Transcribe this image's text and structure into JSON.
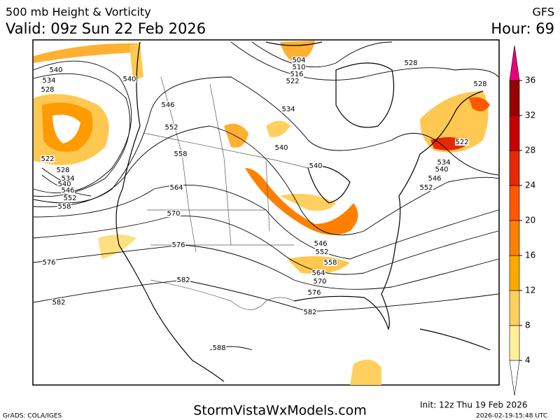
{
  "header": {
    "title": "500 mb Height & Vorticity",
    "valid": "Valid: 09z Sun 22 Feb 2026",
    "model": "GFS",
    "hour": "Hour: 69"
  },
  "colorbar": {
    "ticks": [
      4,
      8,
      12,
      16,
      20,
      24,
      28,
      32,
      36
    ],
    "colors": [
      "#fff09a",
      "#ffd060",
      "#ffa800",
      "#ff8000",
      "#ff5800",
      "#e82800",
      "#c80000",
      "#9a0000"
    ],
    "over_color": "#e8007a"
  },
  "contour_labels": [
    540,
    534,
    528,
    522,
    528,
    534,
    540,
    546,
    552,
    558,
    540,
    546,
    552,
    558,
    564,
    570,
    576,
    576,
    582,
    582,
    588,
    540,
    540,
    534,
    522,
    516,
    510,
    504,
    528,
    528,
    522,
    534,
    540,
    546,
    552,
    546,
    552,
    558,
    564,
    570,
    576,
    582
  ],
  "footer": {
    "credit": "GrADS: COLA/IGES",
    "site": "StormVistaWxModels.com",
    "init": "Init: 12z Thu 19 Feb 2026",
    "stamp": "2026-02-19-15:48 UTC"
  }
}
